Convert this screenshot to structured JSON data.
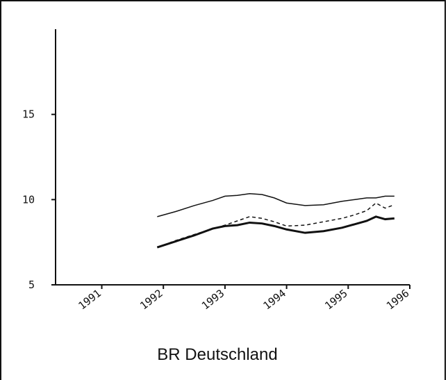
{
  "chart_data": {
    "type": "line",
    "title": "BR Deutschland",
    "x": [
      1991.9,
      1992.2,
      1992.5,
      1992.8,
      1993.0,
      1993.2,
      1993.4,
      1993.6,
      1993.8,
      1994.0,
      1994.3,
      1994.6,
      1994.9,
      1995.1,
      1995.3,
      1995.45,
      1995.6,
      1995.75
    ],
    "series": [
      {
        "color": "#111111",
        "line_style": "solid",
        "line_width": 1.5,
        "values": [
          9.0,
          9.3,
          9.65,
          9.95,
          10.2,
          10.25,
          10.35,
          10.3,
          10.1,
          9.8,
          9.65,
          9.7,
          9.9,
          10.0,
          10.1,
          10.1,
          10.2,
          10.2
        ]
      },
      {
        "color": "#111111",
        "line_style": "dashed",
        "line_width": 1.5,
        "values": [
          7.2,
          7.6,
          7.95,
          8.3,
          8.5,
          8.75,
          9.0,
          8.9,
          8.7,
          8.45,
          8.5,
          8.7,
          8.9,
          9.1,
          9.35,
          9.8,
          9.5,
          9.7
        ]
      },
      {
        "color": "#111111",
        "line_style": "solid",
        "line_width": 3,
        "values": [
          7.2,
          7.55,
          7.9,
          8.3,
          8.45,
          8.5,
          8.65,
          8.6,
          8.45,
          8.25,
          8.05,
          8.15,
          8.35,
          8.55,
          8.75,
          9.0,
          8.85,
          8.9
        ]
      }
    ],
    "xlim": [
      1990.25,
      1996
    ],
    "xticks": [
      1991,
      1992,
      1993,
      1994,
      1995,
      1996
    ],
    "ylim": [
      5,
      20
    ],
    "yticks": [
      5,
      10,
      15
    ]
  }
}
